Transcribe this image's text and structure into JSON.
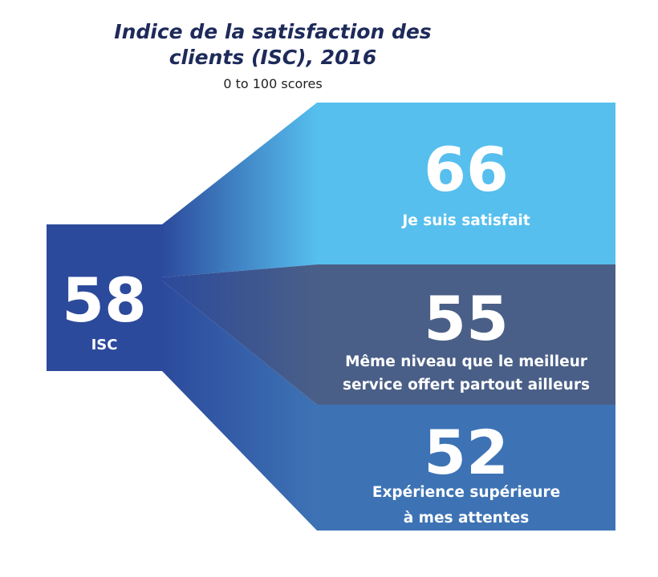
{
  "chart_data": {
    "type": "bar",
    "title": [
      "Indice de la satisfaction des",
      "clients (ISC), 2016"
    ],
    "subtitle": "0 to 100 scores",
    "source": {
      "value": 58,
      "label": "ISC",
      "color": "#2c4a9c"
    },
    "categories": [
      [
        "Je suis satisfait"
      ],
      [
        "Même niveau que le meilleur",
        "service offert partout ailleurs"
      ],
      [
        "Expérience supérieure",
        "à mes attentes"
      ]
    ],
    "values": [
      66,
      55,
      52
    ],
    "colors": [
      "#56bfee",
      "#4a5f87",
      "#3d73b5"
    ],
    "scale": [
      0,
      100
    ]
  }
}
